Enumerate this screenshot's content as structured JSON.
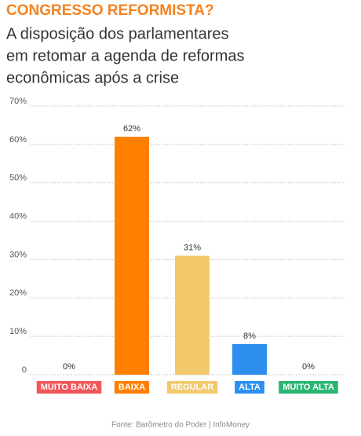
{
  "chart_data": {
    "type": "bar",
    "title": "CONGRESSO REFORMISTA?",
    "subtitle": [
      "A disposição dos parlamentares",
      "em retomar a agenda de reformas",
      "econômicas após a crise"
    ],
    "categories": [
      "MUITO BAIXA",
      "BAIXA",
      "REGULAR",
      "ALTA",
      "MUITO ALTA"
    ],
    "values": [
      0,
      62,
      31,
      8,
      0
    ],
    "value_labels": [
      "0%",
      "62%",
      "31%",
      "8%",
      "0%"
    ],
    "colors": [
      "#f0565a",
      "#ff8000",
      "#f2c96b",
      "#2d8ef0",
      "#2bb573"
    ],
    "ylim": [
      0,
      70
    ],
    "yticks": [
      {
        "value": 0,
        "label": "0"
      },
      {
        "value": 10,
        "label": "10%"
      },
      {
        "value": 20,
        "label": "20%"
      },
      {
        "value": 30,
        "label": "30%"
      },
      {
        "value": 40,
        "label": "40%"
      },
      {
        "value": 50,
        "label": "50%"
      },
      {
        "value": 60,
        "label": "60%"
      },
      {
        "value": 70,
        "label": "70%"
      }
    ],
    "grid": true,
    "source": "Fonte: Barômetro do Poder | InfoMoney"
  }
}
